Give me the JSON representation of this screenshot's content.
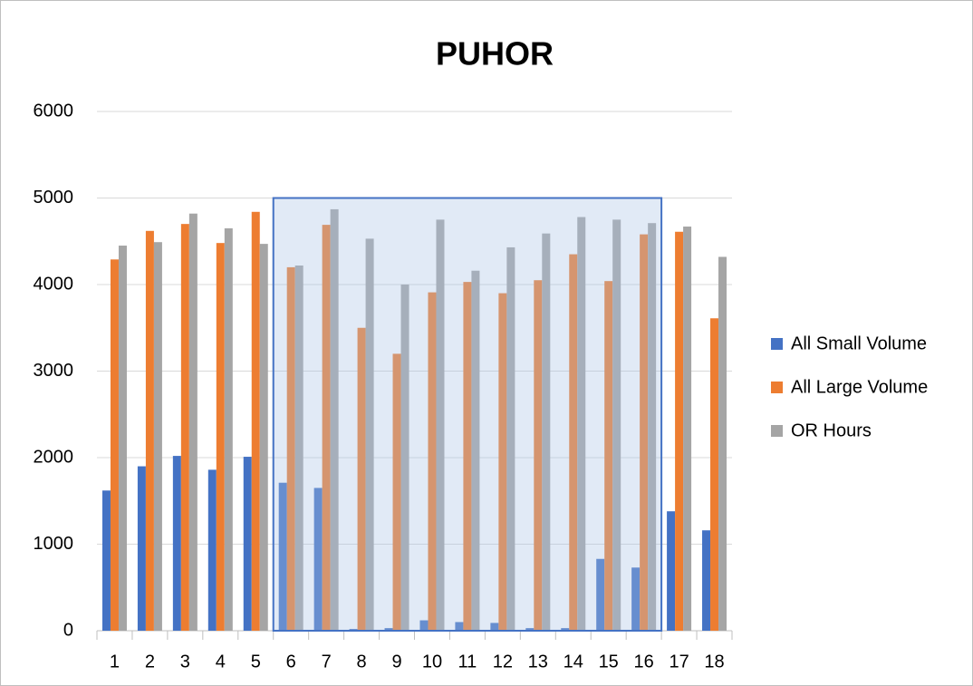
{
  "chart_data": {
    "type": "bar",
    "title": "PUHOR",
    "categories": [
      "1",
      "2",
      "3",
      "4",
      "5",
      "6",
      "7",
      "8",
      "9",
      "10",
      "11",
      "12",
      "13",
      "14",
      "15",
      "16",
      "17",
      "18"
    ],
    "series": [
      {
        "name": "All Small Volume",
        "color": "#4472c4",
        "values": [
          1620,
          1900,
          2020,
          1860,
          2010,
          1710,
          1650,
          20,
          30,
          120,
          100,
          90,
          30,
          30,
          830,
          730,
          1380,
          1160
        ]
      },
      {
        "name": "All Large Volume",
        "color": "#ed7d31",
        "values": [
          4290,
          4620,
          4700,
          4480,
          4840,
          4200,
          4690,
          3500,
          3200,
          3910,
          4030,
          3900,
          4050,
          4350,
          4040,
          4580,
          4610,
          3610
        ]
      },
      {
        "name": "OR Hours",
        "color": "#a5a5a5",
        "values": [
          4450,
          4490,
          4820,
          4650,
          4470,
          4220,
          4870,
          4530,
          4000,
          4750,
          4160,
          4430,
          4590,
          4780,
          4750,
          4710,
          4670,
          4320
        ]
      }
    ],
    "ylim": [
      0,
      6000
    ],
    "yticks": [
      0,
      1000,
      2000,
      3000,
      4000,
      5000,
      6000
    ],
    "grid": true,
    "legend": "right"
  }
}
